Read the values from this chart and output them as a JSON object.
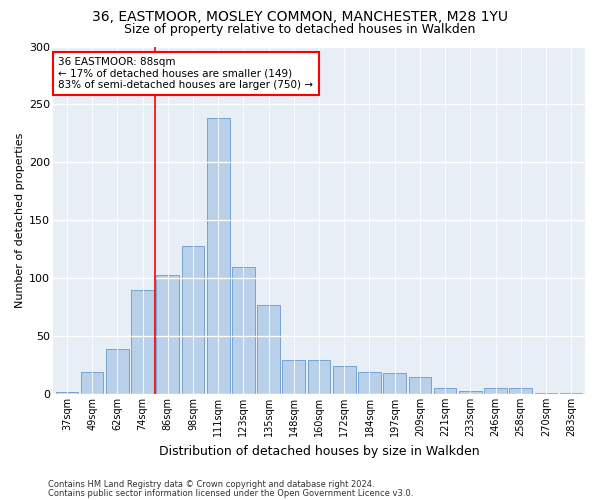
{
  "title1": "36, EASTMOOR, MOSLEY COMMON, MANCHESTER, M28 1YU",
  "title2": "Size of property relative to detached houses in Walkden",
  "xlabel": "Distribution of detached houses by size in Walkden",
  "ylabel": "Number of detached properties",
  "bar_labels": [
    "37sqm",
    "49sqm",
    "62sqm",
    "74sqm",
    "86sqm",
    "98sqm",
    "111sqm",
    "123sqm",
    "135sqm",
    "148sqm",
    "160sqm",
    "172sqm",
    "184sqm",
    "197sqm",
    "209sqm",
    "221sqm",
    "233sqm",
    "246sqm",
    "258sqm",
    "270sqm",
    "283sqm"
  ],
  "bar_values": [
    2,
    19,
    39,
    90,
    103,
    128,
    238,
    110,
    77,
    29,
    29,
    24,
    19,
    18,
    15,
    5,
    3,
    5,
    5,
    1,
    1
  ],
  "bar_color": "#b8d0ea",
  "bar_edge_color": "#6699cc",
  "vline_x": 3.5,
  "vline_color": "red",
  "annotation_text": "36 EASTMOOR: 88sqm\n← 17% of detached houses are smaller (149)\n83% of semi-detached houses are larger (750) →",
  "annotation_box_color": "white",
  "annotation_box_edge": "red",
  "ylim": [
    0,
    300
  ],
  "yticks": [
    0,
    50,
    100,
    150,
    200,
    250,
    300
  ],
  "footer1": "Contains HM Land Registry data © Crown copyright and database right 2024.",
  "footer2": "Contains public sector information licensed under the Open Government Licence v3.0.",
  "bg_color": "#e8eef6",
  "title1_fontsize": 10,
  "title2_fontsize": 9,
  "tick_fontsize": 7,
  "ylabel_fontsize": 8,
  "xlabel_fontsize": 9
}
